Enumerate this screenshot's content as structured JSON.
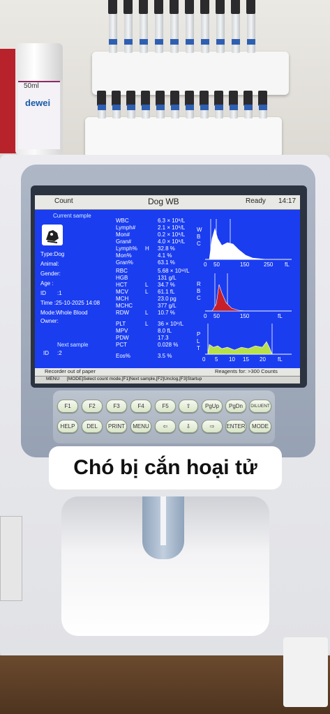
{
  "bottle": {
    "volume": "50ml",
    "brand": "dewei"
  },
  "screen": {
    "tab_count": "Count",
    "title": "Dog  WB",
    "status": "Ready",
    "time": "14:17",
    "current_sample_label": "Current sample",
    "type": "Type:Dog",
    "animal": "Animal:",
    "gender": "Gender:",
    "age": "Age  :",
    "id_label": "ID",
    "id_value": ":1",
    "time_line": "Time :25-10-2025 14:08",
    "mode": "Mode:Whole Blood",
    "owner": "Owner:",
    "next_sample_label": "Next sample",
    "next_id_label": "ID",
    "next_id_value": ":2",
    "params": [
      {
        "name": "WBC",
        "flag": "",
        "value": "6.3 × 10⁹/L"
      },
      {
        "name": "Lymph#",
        "flag": "",
        "value": "2.1 × 10⁹/L"
      },
      {
        "name": "Mon#",
        "flag": "",
        "value": "0.2 × 10⁹/L"
      },
      {
        "name": "Gran#",
        "flag": "",
        "value": "4.0 × 10⁹/L"
      },
      {
        "name": "Lymph%",
        "flag": "H",
        "value": "32.8 %"
      },
      {
        "name": "Mon%",
        "flag": "",
        "value": "4.1 %"
      },
      {
        "name": "Gran%",
        "flag": "",
        "value": "63.1 %"
      },
      {
        "name": "RBC",
        "flag": "",
        "value": "5.68 × 10¹²/L"
      },
      {
        "name": "HGB",
        "flag": "",
        "value": "131 g/L"
      },
      {
        "name": "HCT",
        "flag": "L",
        "value": "34.7 %"
      },
      {
        "name": "MCV",
        "flag": "L",
        "value": "61.1 fL"
      },
      {
        "name": "MCH",
        "flag": "",
        "value": "23.0 pg"
      },
      {
        "name": "MCHC",
        "flag": "",
        "value": "377 g/L"
      },
      {
        "name": "RDW",
        "flag": "L",
        "value": "10.7 %"
      },
      {
        "name": "PLT",
        "flag": "L",
        "value": "36 × 10⁹/L"
      },
      {
        "name": "MPV",
        "flag": "",
        "value": "8.0 fL"
      },
      {
        "name": "PDW",
        "flag": "",
        "value": "17.3"
      },
      {
        "name": "PCT",
        "flag": "",
        "value": "0.028 %"
      },
      {
        "name": "Eos%",
        "flag": "",
        "value": "3.5 %"
      }
    ],
    "wbc_chart": {
      "side_label": [
        "W",
        "B",
        "C"
      ],
      "ticks": [
        "0",
        "50",
        "150",
        "250",
        "fL"
      ]
    },
    "rbc_chart": {
      "side_label": [
        "R",
        "B",
        "C"
      ],
      "ticks": [
        "0",
        "50",
        "150",
        "fL"
      ]
    },
    "plt_chart": {
      "side_label": [
        "P",
        "L",
        "T"
      ],
      "ticks": [
        "0",
        "5",
        "10",
        "15",
        "20",
        "fL"
      ]
    },
    "status_left": "Recorder out of paper",
    "status_right": "Reagents for: >300 Counts",
    "menu_label": "MENU",
    "menu_hint": "[MODE]Select count mode,[F1]Next sample,[F2]Unclog,[F3]Startup"
  },
  "keys": {
    "row1": [
      "F1",
      "F2",
      "F3",
      "F4",
      "F5",
      "⇧",
      "PgUp",
      "PgDn",
      "DILUENT"
    ],
    "row2": [
      "HELP",
      "DEL",
      "PRINT",
      "MENU",
      "⇦",
      "⇩",
      "⇨",
      "ENTER",
      "MODE"
    ]
  },
  "caption": "Chó bị cắn hoại tử",
  "colors": {
    "screen": "#1a3df0",
    "rbc_fill": "#c8202a",
    "plt_fill": "#b8e04a",
    "wbc_fill": "#ffffff"
  }
}
